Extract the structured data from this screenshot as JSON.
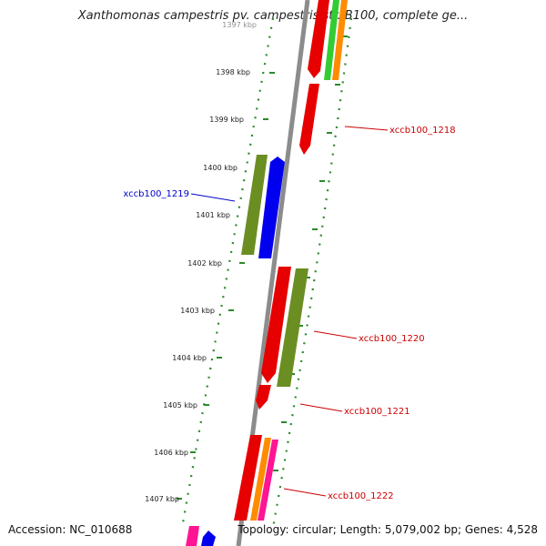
{
  "title": "Xanthomonas campestris pv. campestris str. B100, complete ge...",
  "footer": {
    "accession": "Accession: NC_010688",
    "topology": "Topology: circular; Length: 5,079,002 bp; Genes: 4,528"
  },
  "kbp_labels": [
    "1397 kbp",
    "1398 kbp",
    "1399 kbp",
    "1400 kbp",
    "1401 kbp",
    "1402 kbp",
    "1403 kbp",
    "1404 kbp",
    "1405 kbp",
    "1406 kbp",
    "1407 kbp"
  ],
  "gene_labels": [
    {
      "text": "xccb100_1218",
      "color": "#cc0000"
    },
    {
      "text": "xccb100_1219",
      "color": "#0000cc"
    },
    {
      "text": "xccb100_1220",
      "color": "#cc0000"
    },
    {
      "text": "xccb100_1221",
      "color": "#cc0000"
    },
    {
      "text": "xccb100_1222",
      "color": "#cc0000"
    }
  ],
  "colors": {
    "backbone": "#8c8c8c",
    "tick": "#2a8a2a",
    "red": "#e60000",
    "olive": "#6b8e23",
    "blue": "#0000ee",
    "orange": "#ff8c00",
    "green": "#33cc33",
    "magenta": "#ff1493"
  }
}
